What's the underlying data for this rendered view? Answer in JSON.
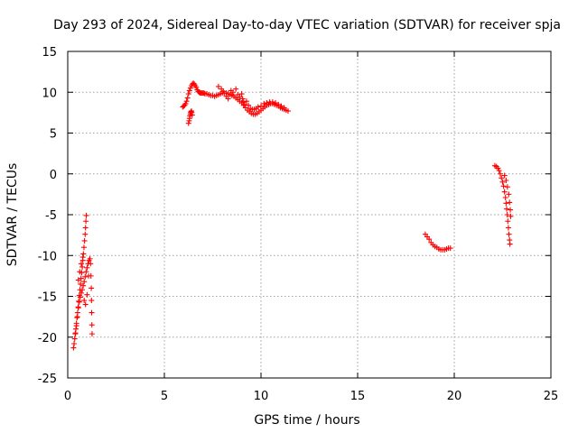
{
  "chart_data": {
    "type": "scatter",
    "title": "Day 293 of 2024, Sidereal Day-to-day VTEC variation (SDTVAR) for receiver spja",
    "xlabel": "GPS time / hours",
    "ylabel": "SDTVAR / TECUs",
    "xlim": [
      0,
      25
    ],
    "ylim": [
      -25,
      15
    ],
    "x_ticks": [
      0,
      5,
      10,
      15,
      20,
      25
    ],
    "y_ticks": [
      -25,
      -20,
      -15,
      -10,
      -5,
      0,
      5,
      10,
      15
    ],
    "grid": true,
    "marker": "+",
    "series": [
      {
        "name": "SDTVAR",
        "color": "#ff0000",
        "points": [
          [
            0.3,
            -21.3
          ],
          [
            0.33,
            -20.8
          ],
          [
            0.36,
            -20.2
          ],
          [
            0.39,
            -19.6
          ],
          [
            0.42,
            -19.0
          ],
          [
            0.45,
            -18.3
          ],
          [
            0.48,
            -17.6
          ],
          [
            0.51,
            -17.0
          ],
          [
            0.54,
            -16.3
          ],
          [
            0.57,
            -15.6
          ],
          [
            0.6,
            -14.9
          ],
          [
            0.63,
            -14.2
          ],
          [
            0.66,
            -13.5
          ],
          [
            0.69,
            -12.8
          ],
          [
            0.72,
            -12.1
          ],
          [
            0.75,
            -11.4
          ],
          [
            0.78,
            -10.6
          ],
          [
            0.81,
            -9.8
          ],
          [
            0.84,
            -9.0
          ],
          [
            0.87,
            -8.2
          ],
          [
            0.9,
            -7.4
          ],
          [
            0.92,
            -6.6
          ],
          [
            0.94,
            -5.8
          ],
          [
            0.96,
            -5.1
          ],
          [
            0.4,
            -19.5
          ],
          [
            0.45,
            -18.6
          ],
          [
            0.5,
            -17.5
          ],
          [
            0.55,
            -16.4
          ],
          [
            0.6,
            -15.7
          ],
          [
            0.65,
            -15.1
          ],
          [
            0.7,
            -14.6
          ],
          [
            0.75,
            -14.2
          ],
          [
            0.8,
            -13.7
          ],
          [
            0.85,
            -13.2
          ],
          [
            0.9,
            -12.6
          ],
          [
            0.95,
            -12.0
          ],
          [
            1.0,
            -11.5
          ],
          [
            1.05,
            -11.0
          ],
          [
            1.1,
            -10.6
          ],
          [
            1.15,
            -10.4
          ],
          [
            0.55,
            -13.0
          ],
          [
            0.62,
            -12.0
          ],
          [
            0.7,
            -11.0
          ],
          [
            0.78,
            -10.2
          ],
          [
            0.85,
            -15.5
          ],
          [
            0.92,
            -16.0
          ],
          [
            1.0,
            -14.8
          ],
          [
            1.08,
            -12.5
          ],
          [
            1.18,
            -11.0
          ],
          [
            1.2,
            -12.5
          ],
          [
            1.22,
            -14.0
          ],
          [
            1.23,
            -15.5
          ],
          [
            1.24,
            -17.0
          ],
          [
            1.25,
            -18.5
          ],
          [
            1.26,
            -19.6
          ],
          [
            5.95,
            8.2
          ],
          [
            6.0,
            8.3
          ],
          [
            6.05,
            8.4
          ],
          [
            6.1,
            8.6
          ],
          [
            6.15,
            8.9
          ],
          [
            6.2,
            9.3
          ],
          [
            6.25,
            9.8
          ],
          [
            6.3,
            10.2
          ],
          [
            6.35,
            10.5
          ],
          [
            6.4,
            10.8
          ],
          [
            6.45,
            11.0
          ],
          [
            6.5,
            11.1
          ],
          [
            6.55,
            11.0
          ],
          [
            6.6,
            10.8
          ],
          [
            6.65,
            10.6
          ],
          [
            6.7,
            10.3
          ],
          [
            6.75,
            10.1
          ],
          [
            6.8,
            10.0
          ],
          [
            6.85,
            9.9
          ],
          [
            6.9,
            9.9
          ],
          [
            6.95,
            9.9
          ],
          [
            7.0,
            9.9
          ],
          [
            7.05,
            9.9
          ],
          [
            7.1,
            9.8
          ],
          [
            7.2,
            9.8
          ],
          [
            7.3,
            9.7
          ],
          [
            7.4,
            9.6
          ],
          [
            7.5,
            9.6
          ],
          [
            7.6,
            9.5
          ],
          [
            7.7,
            9.6
          ],
          [
            7.8,
            9.7
          ],
          [
            7.9,
            9.8
          ],
          [
            8.0,
            9.9
          ],
          [
            8.1,
            9.9
          ],
          [
            8.2,
            9.9
          ],
          [
            8.3,
            9.8
          ],
          [
            8.4,
            9.7
          ],
          [
            8.5,
            9.6
          ],
          [
            8.6,
            9.5
          ],
          [
            8.7,
            9.3
          ],
          [
            8.8,
            9.1
          ],
          [
            8.9,
            8.9
          ],
          [
            9.0,
            8.7
          ],
          [
            9.1,
            8.4
          ],
          [
            9.2,
            8.1
          ],
          [
            9.3,
            7.8
          ],
          [
            9.4,
            7.6
          ],
          [
            9.5,
            7.4
          ],
          [
            9.6,
            7.3
          ],
          [
            9.7,
            7.3
          ],
          [
            9.8,
            7.4
          ],
          [
            9.9,
            7.6
          ],
          [
            10.0,
            7.8
          ],
          [
            10.1,
            8.0
          ],
          [
            10.2,
            8.2
          ],
          [
            10.3,
            8.4
          ],
          [
            10.4,
            8.5
          ],
          [
            10.5,
            8.6
          ],
          [
            10.6,
            8.6
          ],
          [
            10.7,
            8.5
          ],
          [
            10.8,
            8.4
          ],
          [
            10.9,
            8.3
          ],
          [
            11.0,
            8.1
          ],
          [
            11.1,
            8.0
          ],
          [
            11.2,
            7.9
          ],
          [
            11.3,
            7.8
          ],
          [
            11.4,
            7.7
          ],
          [
            7.8,
            10.7
          ],
          [
            7.95,
            10.4
          ],
          [
            8.05,
            10.1
          ],
          [
            8.2,
            9.5
          ],
          [
            8.3,
            9.2
          ],
          [
            8.45,
            10.2
          ],
          [
            8.55,
            10.0
          ],
          [
            8.7,
            10.4
          ],
          [
            8.8,
            9.7
          ],
          [
            8.9,
            9.4
          ],
          [
            9.0,
            9.8
          ],
          [
            9.05,
            9.2
          ],
          [
            9.1,
            8.8
          ],
          [
            9.15,
            8.5
          ],
          [
            9.25,
            8.9
          ],
          [
            9.35,
            8.4
          ],
          [
            9.45,
            8.0
          ],
          [
            9.55,
            7.9
          ],
          [
            9.65,
            7.9
          ],
          [
            9.75,
            8.0
          ],
          [
            9.85,
            8.2
          ],
          [
            10.0,
            8.3
          ],
          [
            10.15,
            8.6
          ],
          [
            10.3,
            8.7
          ],
          [
            10.45,
            8.8
          ],
          [
            10.6,
            8.8
          ],
          [
            10.75,
            8.7
          ],
          [
            10.9,
            8.5
          ],
          [
            11.05,
            8.3
          ],
          [
            11.2,
            8.1
          ],
          [
            6.25,
            6.2
          ],
          [
            6.28,
            6.5
          ],
          [
            6.3,
            6.8
          ],
          [
            6.32,
            7.1
          ],
          [
            6.34,
            7.3
          ],
          [
            6.36,
            7.5
          ],
          [
            6.38,
            7.6
          ],
          [
            6.4,
            7.7
          ],
          [
            6.42,
            7.5
          ],
          [
            6.44,
            7.2
          ],
          [
            18.5,
            -7.4
          ],
          [
            18.6,
            -7.7
          ],
          [
            18.7,
            -8.0
          ],
          [
            18.8,
            -8.4
          ],
          [
            18.9,
            -8.7
          ],
          [
            19.0,
            -8.9
          ],
          [
            19.1,
            -9.0
          ],
          [
            19.2,
            -9.2
          ],
          [
            19.3,
            -9.3
          ],
          [
            19.4,
            -9.3
          ],
          [
            19.5,
            -9.3
          ],
          [
            19.6,
            -9.2
          ],
          [
            19.7,
            -9.1
          ],
          [
            19.8,
            -9.1
          ],
          [
            22.1,
            1.0
          ],
          [
            22.18,
            0.9
          ],
          [
            22.26,
            0.7
          ],
          [
            22.32,
            0.4
          ],
          [
            22.38,
            0.0
          ],
          [
            22.44,
            -0.5
          ],
          [
            22.5,
            -1.0
          ],
          [
            22.55,
            -1.5
          ],
          [
            22.6,
            -2.2
          ],
          [
            22.65,
            -2.9
          ],
          [
            22.68,
            -3.6
          ],
          [
            22.71,
            -4.3
          ],
          [
            22.74,
            -5.0
          ],
          [
            22.77,
            -5.8
          ],
          [
            22.8,
            -6.6
          ],
          [
            22.83,
            -7.4
          ],
          [
            22.86,
            -8.1
          ],
          [
            22.88,
            -8.6
          ],
          [
            22.6,
            -0.2
          ],
          [
            22.68,
            -0.8
          ],
          [
            22.75,
            -1.6
          ],
          [
            22.82,
            -2.5
          ],
          [
            22.86,
            -3.5
          ],
          [
            22.9,
            -4.4
          ],
          [
            22.92,
            -5.2
          ]
        ]
      }
    ]
  }
}
